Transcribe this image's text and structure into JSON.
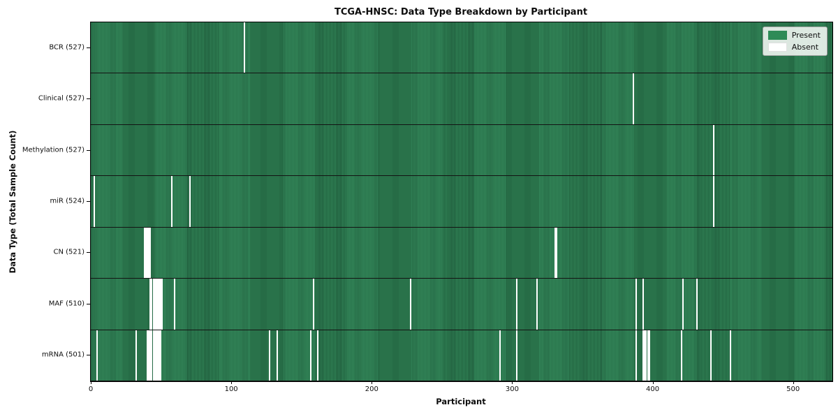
{
  "title": "TCGA-HNSC: Data Type Breakdown by Participant",
  "xlabel": "Participant",
  "ylabel": "Data Type (Total Sample Count)",
  "legend": {
    "present_label": "Present",
    "absent_label": "Absent"
  },
  "colors": {
    "present": "#2e8b57",
    "present_stripe_light": "#33875a",
    "present_stripe_dark": "#1f5e3b",
    "absent": "#ffffff",
    "axis": "#000000"
  },
  "chart_data": {
    "type": "heatmap",
    "title": "TCGA-HNSC: Data Type Breakdown by Participant",
    "xlabel": "Participant",
    "ylabel": "Data Type (Total Sample Count)",
    "xlim": [
      0,
      528
    ],
    "x_ticks": [
      0,
      100,
      200,
      300,
      400,
      500
    ],
    "grid": false,
    "legend_position": "upper right",
    "legend": [
      {
        "label": "Present",
        "color": "#2e8b57"
      },
      {
        "label": "Absent",
        "color": "#ffffff"
      }
    ],
    "total_participants": 528,
    "rows": [
      {
        "data_type": "BCR",
        "label": "BCR (527)",
        "present_count": 527,
        "absent_participants": [
          109
        ]
      },
      {
        "data_type": "Clinical",
        "label": "Clinical (527)",
        "present_count": 527,
        "absent_participants": [
          386
        ]
      },
      {
        "data_type": "Methylation",
        "label": "Methylation (527)",
        "present_count": 527,
        "absent_participants": [
          443
        ]
      },
      {
        "data_type": "miR",
        "label": "miR (524)",
        "present_count": 524,
        "absent_participants": [
          2,
          57,
          70,
          443
        ]
      },
      {
        "data_type": "CN",
        "label": "CN (521)",
        "present_count": 521,
        "absent_participants": [
          38,
          39,
          40,
          41,
          42,
          330,
          331
        ]
      },
      {
        "data_type": "MAF",
        "label": "MAF (510)",
        "present_count": 510,
        "absent_participants": [
          42,
          43,
          44,
          45,
          46,
          47,
          48,
          49,
          50,
          59,
          158,
          227,
          303,
          317,
          388,
          393,
          421,
          431
        ]
      },
      {
        "data_type": "mRNA",
        "label": "mRNA (501)",
        "present_count": 501,
        "absent_participants": [
          4,
          32,
          40,
          41,
          42,
          43,
          44,
          45,
          46,
          47,
          48,
          49,
          127,
          132,
          156,
          161,
          291,
          303,
          388,
          393,
          394,
          395,
          396,
          397,
          420,
          441,
          455
        ]
      }
    ]
  }
}
